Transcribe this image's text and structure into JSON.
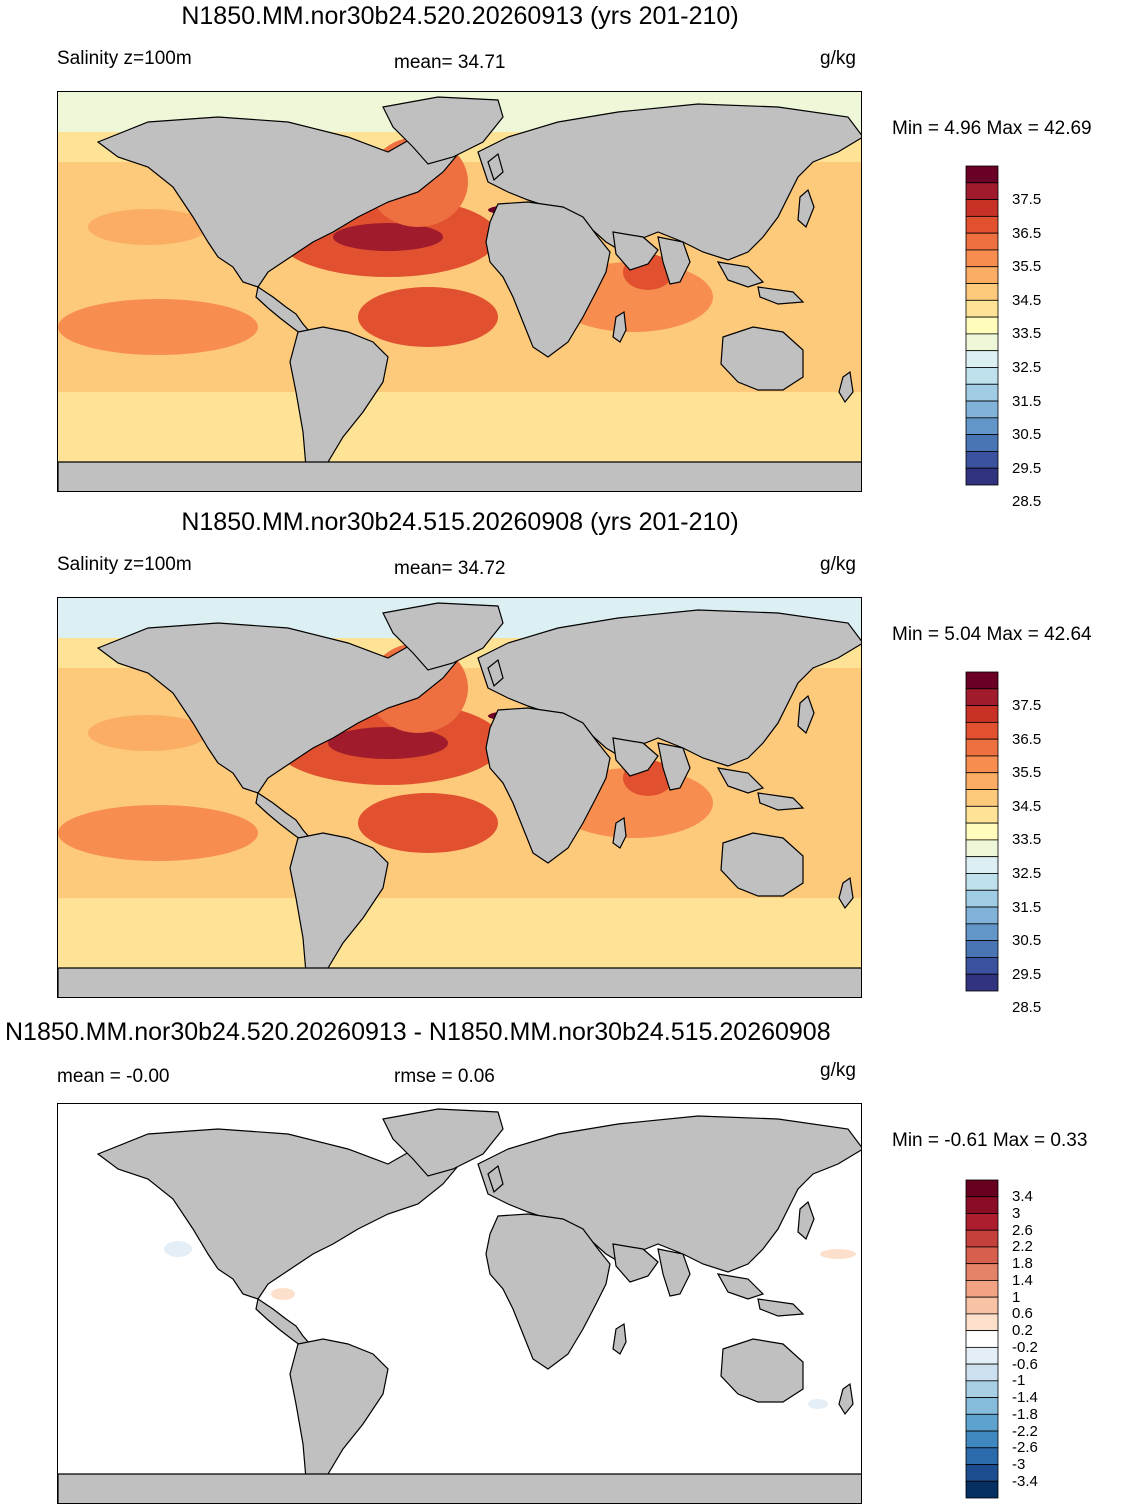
{
  "panels": [
    {
      "title": "N1850.MM.nor30b24.520.20260913 (yrs 201-210)",
      "label": "Salinity z=100m",
      "center_text": "mean=  34.71",
      "units": "g/kg",
      "minmax": "Min =   4.96 Max =  42.69",
      "colorbar_labels": [
        "37.5",
        "36.5",
        "35.5",
        "34.5",
        "33.5",
        "32.5",
        "31.5",
        "30.5",
        "29.5",
        "28.5"
      ]
    },
    {
      "title": "N1850.MM.nor30b24.515.20260908 (yrs 201-210)",
      "label": "Salinity z=100m",
      "center_text": "mean=  34.72",
      "units": "g/kg",
      "minmax": "Min =   5.04 Max =  42.64",
      "colorbar_labels": [
        "37.5",
        "36.5",
        "35.5",
        "34.5",
        "33.5",
        "32.5",
        "31.5",
        "30.5",
        "29.5",
        "28.5"
      ]
    },
    {
      "title": "N1850.MM.nor30b24.520.20260913 - N1850.MM.nor30b24.515.20260908",
      "label": "mean =  -0.00",
      "center_text": "rmse =   0.06",
      "units": "g/kg",
      "minmax": "Min =  -0.61 Max =   0.33",
      "colorbar_labels": [
        "3.4",
        "3",
        "2.6",
        "2.2",
        "1.8",
        "1.4",
        "1",
        "0.6",
        "0.2",
        "-0.2",
        "-0.6",
        "-1",
        "-1.4",
        "-1.8",
        "-2.2",
        "-2.6",
        "-3",
        "-3.4"
      ]
    }
  ],
  "colors": {
    "land": "#c0c0c0",
    "coast": "#000000",
    "salinity_scale": [
      "#6a0026",
      "#a01c2c",
      "#c83226",
      "#e1512f",
      "#ee7040",
      "#f78e4f",
      "#fbad63",
      "#fdc97b",
      "#fee396",
      "#fffcbc",
      "#eef8d8",
      "#dcf0f3",
      "#bfe1ee",
      "#a0cde4",
      "#80b3d7",
      "#6295c8",
      "#4a75b4",
      "#3b529f",
      "#31337e"
    ],
    "diff_scale": [
      "#67001f",
      "#8a0c26",
      "#ac1d2e",
      "#c5403a",
      "#d6604d",
      "#e58368",
      "#f2a383",
      "#f8c2a5",
      "#fde0cc",
      "#ffffff",
      "#e3eef6",
      "#cce0ef",
      "#a9cfe5",
      "#85bbdb",
      "#5ea3cf",
      "#3f87bf",
      "#2b6aab",
      "#1b4d8f",
      "#053061"
    ]
  },
  "chart_data": [
    {
      "type": "heatmap",
      "title": "N1850.MM.nor30b24.520.20260913 (yrs 201-210)",
      "subtitle": "Salinity z=100m",
      "units": "g/kg",
      "mean": 34.71,
      "min": 4.96,
      "max": 42.69,
      "contour_levels": [
        28.5,
        29.0,
        29.5,
        30.0,
        30.5,
        31.0,
        31.5,
        32.0,
        32.5,
        33.0,
        33.5,
        34.0,
        34.5,
        35.0,
        35.5,
        36.0,
        36.5,
        37.0,
        37.5
      ],
      "colorbar_ticks": [
        37.5,
        36.5,
        35.5,
        34.5,
        33.5,
        32.5,
        31.5,
        30.5,
        29.5,
        28.5
      ],
      "projection": "cylindrical equidistant global map"
    },
    {
      "type": "heatmap",
      "title": "N1850.MM.nor30b24.515.20260908 (yrs 201-210)",
      "subtitle": "Salinity z=100m",
      "units": "g/kg",
      "mean": 34.72,
      "min": 5.04,
      "max": 42.64,
      "contour_levels": [
        28.5,
        29.0,
        29.5,
        30.0,
        30.5,
        31.0,
        31.5,
        32.0,
        32.5,
        33.0,
        33.5,
        34.0,
        34.5,
        35.0,
        35.5,
        36.0,
        36.5,
        37.0,
        37.5
      ],
      "colorbar_ticks": [
        37.5,
        36.5,
        35.5,
        34.5,
        33.5,
        32.5,
        31.5,
        30.5,
        29.5,
        28.5
      ],
      "projection": "cylindrical equidistant global map"
    },
    {
      "type": "heatmap",
      "title": "N1850.MM.nor30b24.520.20260913 - N1850.MM.nor30b24.515.20260908",
      "units": "g/kg",
      "mean": -0.0,
      "rmse": 0.06,
      "min": -0.61,
      "max": 0.33,
      "contour_levels": [
        -3.4,
        -3.0,
        -2.6,
        -2.2,
        -1.8,
        -1.4,
        -1.0,
        -0.6,
        -0.2,
        0.2,
        0.6,
        1.0,
        1.4,
        1.8,
        2.2,
        2.6,
        3.0,
        3.4
      ],
      "colorbar_ticks": [
        3.4,
        3,
        2.6,
        2.2,
        1.8,
        1.4,
        1,
        0.6,
        0.2,
        -0.2,
        -0.6,
        -1,
        -1.4,
        -1.8,
        -2.2,
        -2.6,
        -3,
        -3.4
      ],
      "projection": "cylindrical equidistant global map"
    }
  ]
}
